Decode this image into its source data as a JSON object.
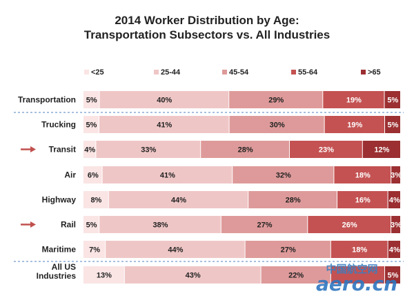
{
  "chart_data": {
    "type": "bar",
    "orientation": "horizontal",
    "stacked": true,
    "percent": true,
    "title": "2014 Worker Distribution by Age:",
    "subtitle": "Transportation Subsectors vs. All Industries",
    "categories": [
      "Transportation",
      "Trucking",
      "Transit",
      "Air",
      "Highway",
      "Rail",
      "Maritime",
      "All US Industries"
    ],
    "series": [
      {
        "name": "<25",
        "color": "#fae4e4",
        "values": [
          5,
          5,
          4,
          6,
          8,
          5,
          7,
          13
        ]
      },
      {
        "name": "25-44",
        "color": "#efc6c6",
        "values": [
          40,
          41,
          33,
          41,
          44,
          38,
          44,
          43
        ]
      },
      {
        "name": "45-54",
        "color": "#de9a9a",
        "values": [
          29,
          30,
          28,
          32,
          28,
          27,
          27,
          22
        ]
      },
      {
        "name": "55-64",
        "color": "#c45252",
        "values": [
          19,
          19,
          23,
          18,
          16,
          26,
          18,
          17
        ]
      },
      {
        "name": ">65",
        "color": "#9b2f31",
        "values": [
          5,
          5,
          12,
          3,
          4,
          3,
          4,
          5
        ]
      }
    ],
    "data_labels": [
      [
        "5%",
        "40%",
        "29%",
        "19%",
        "5%"
      ],
      [
        "5%",
        "41%",
        "30%",
        "19%",
        "5%"
      ],
      [
        "4%",
        "33%",
        "28%",
        "23%",
        "12%"
      ],
      [
        "6%",
        "41%",
        "32%",
        "18%",
        "3%"
      ],
      [
        "8%",
        "44%",
        "28%",
        "16%",
        "4%"
      ],
      [
        "5%",
        "38%",
        "27%",
        "26%",
        "3%"
      ],
      [
        "7%",
        "44%",
        "27%",
        "18%",
        "4%"
      ],
      [
        "13%",
        "43%",
        "22%",
        "",
        "5%"
      ]
    ],
    "highlighted_categories": [
      "Transit",
      "Rail"
    ],
    "legend": "top",
    "grid": false
  },
  "watermark": {
    "line1": "中国航空网",
    "line2": "aero.cn"
  },
  "colors": {
    "arrow": "#c0504d",
    "divider": "#4f81bd",
    "text": "#222222"
  }
}
